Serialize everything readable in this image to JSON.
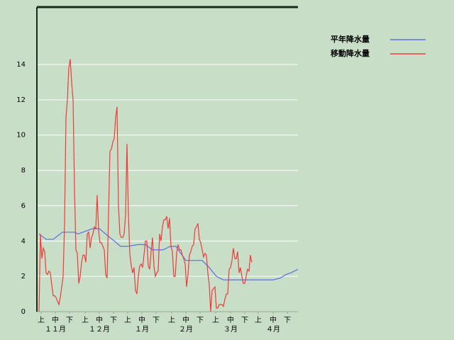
{
  "chart_data": {
    "type": "line",
    "xlim": [
      -0.5,
      183.5
    ],
    "ylim": [
      0,
      17.25
    ],
    "yticks": [
      0,
      2,
      4,
      6,
      8,
      10,
      12,
      14
    ],
    "grid": true,
    "xticks": [
      {
        "value": 2.5,
        "label": "上"
      },
      {
        "value": 12.5,
        "label": "中"
      },
      {
        "value": 22.5,
        "label": "下"
      },
      {
        "value": 33.5,
        "label": "上"
      },
      {
        "value": 43.5,
        "label": "中"
      },
      {
        "value": 53.5,
        "label": "下"
      },
      {
        "value": 63.5,
        "label": "上"
      },
      {
        "value": 73.5,
        "label": "中"
      },
      {
        "value": 83.5,
        "label": "下"
      },
      {
        "value": 94.5,
        "label": "上"
      },
      {
        "value": 104.5,
        "label": "中"
      },
      {
        "value": 114.5,
        "label": "下"
      },
      {
        "value": 125.5,
        "label": "上"
      },
      {
        "value": 136,
        "label": "中"
      },
      {
        "value": 146,
        "label": "下"
      },
      {
        "value": 155.5,
        "label": "上"
      },
      {
        "value": 166,
        "label": "中"
      },
      {
        "value": 176,
        "label": "下"
      }
    ],
    "month_labels": [
      {
        "value": 12.5,
        "label": "１１月"
      },
      {
        "value": 43.5,
        "label": "１２月"
      },
      {
        "value": 73.5,
        "label": "１月"
      },
      {
        "value": 104.5,
        "label": "２月"
      },
      {
        "value": 136,
        "label": "３月"
      },
      {
        "value": 166,
        "label": "４月"
      }
    ],
    "series": [
      {
        "name": "平年降水量",
        "color": "#5a6ee6",
        "x": [
          1,
          6,
          11,
          17.5,
          26,
          28.5,
          38.5,
          43.5,
          58.5,
          63.5,
          71,
          76,
          81,
          88.5,
          93.5,
          97.5,
          101,
          104.5,
          116,
          121,
          126,
          131,
          166,
          171,
          175,
          178.5,
          183.5
        ],
        "values": [
          4.4,
          4.1,
          4.1,
          4.5,
          4.5,
          4.4,
          4.7,
          4.7,
          3.7,
          3.7,
          3.8,
          3.8,
          3.5,
          3.5,
          3.7,
          3.7,
          3.3,
          2.9,
          2.9,
          2.5,
          2.0,
          1.8,
          1.8,
          1.9,
          2.1,
          2.2,
          2.4
        ]
      },
      {
        "name": "移動降水量",
        "color": "#ee3b3b",
        "x": [
          1,
          2,
          3,
          4,
          5,
          6,
          7,
          8,
          9,
          10,
          11,
          12,
          13,
          14,
          15,
          16,
          17,
          18,
          19,
          20,
          21,
          22,
          23,
          24,
          25,
          26,
          27,
          28,
          29,
          30,
          31,
          32,
          33,
          34,
          35,
          36,
          37,
          38,
          39,
          40,
          41,
          42,
          43,
          44,
          45,
          46,
          47,
          48,
          49,
          50,
          51,
          52,
          53,
          54,
          55,
          56,
          57,
          58,
          59,
          60,
          61,
          62,
          63,
          64,
          65,
          66,
          67,
          68,
          69,
          70,
          71,
          72,
          73,
          74,
          75,
          76,
          77,
          78,
          79,
          80,
          81,
          82,
          83,
          84,
          85,
          86,
          87,
          88,
          89,
          90,
          91,
          92,
          93,
          94,
          95,
          96,
          97,
          98,
          99,
          100,
          101,
          102,
          103,
          104,
          105,
          106,
          107,
          108,
          109,
          110,
          111,
          112,
          113,
          114,
          115,
          116,
          117,
          118,
          119,
          120,
          121,
          122,
          123,
          124,
          125,
          126,
          127,
          128,
          129,
          130,
          131,
          132,
          133,
          134,
          135,
          136,
          137,
          138,
          139,
          140,
          141,
          142,
          143,
          144,
          145,
          146,
          147,
          148,
          149,
          150,
          151
        ],
        "values": [
          0,
          4.4,
          3,
          3.6,
          3.4,
          2.2,
          2.1,
          2.3,
          2.2,
          1.5,
          0.9,
          0.9,
          0.8,
          0.6,
          0.4,
          0.8,
          1.4,
          2,
          5,
          11,
          12,
          13.8,
          14.3,
          13,
          12,
          7,
          3.5,
          3.3,
          1.6,
          2,
          2.8,
          3.2,
          3.2,
          2.8,
          4.4,
          4.5,
          3.6,
          4.2,
          4.4,
          4.8,
          4.7,
          6.6,
          4.6,
          3.9,
          3.9,
          3.7,
          3.5,
          2.1,
          1.9,
          5.5,
          9.1,
          9.2,
          9.6,
          9.8,
          11,
          11.6,
          6,
          4.4,
          4.2,
          4.2,
          4.4,
          5.5,
          9.5,
          5.5,
          3.3,
          2.6,
          2.2,
          2.5,
          1.2,
          1,
          2,
          2.6,
          2.7,
          2.5,
          3.2,
          4,
          4,
          2.6,
          2.4,
          3.4,
          4.2,
          2.6,
          2,
          2.2,
          2.3,
          4.4,
          4,
          4.8,
          5.2,
          5.2,
          5.4,
          4.7,
          5.3,
          3.7,
          3.4,
          2,
          2,
          3.3,
          3.8,
          3.5,
          3.5,
          3.2,
          3,
          2.7,
          1.4,
          2.1,
          3.2,
          3.4,
          3.7,
          3.8,
          4.7,
          4.8,
          5,
          4.1,
          3.9,
          3.5,
          3.1,
          3.3,
          3.2,
          2.2,
          1.5,
          0,
          1.2,
          1.3,
          1.4,
          0.2,
          0.2,
          0.4,
          0.4,
          0.4,
          0.3,
          0.7,
          1,
          1,
          2.4,
          2.5,
          2.9,
          3.6,
          3,
          3,
          3.4,
          2.2,
          2.5,
          2,
          1.6,
          1.6,
          2,
          2.4,
          2.3,
          3.2,
          2.8
        ]
      }
    ]
  }
}
